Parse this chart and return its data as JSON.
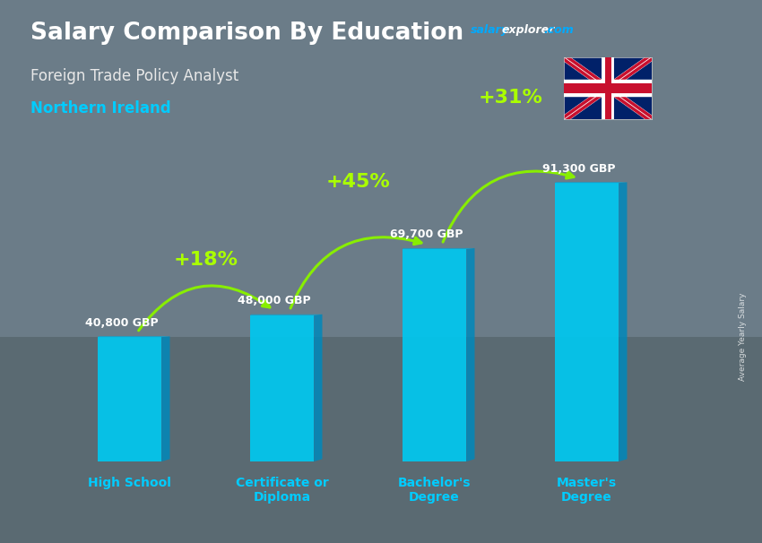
{
  "title": "Salary Comparison By Education",
  "subtitle": "Foreign Trade Policy Analyst",
  "location": "Northern Ireland",
  "categories": [
    "High School",
    "Certificate or\nDiploma",
    "Bachelor's\nDegree",
    "Master's\nDegree"
  ],
  "values": [
    40800,
    48000,
    69700,
    91300
  ],
  "labels": [
    "40,800 GBP",
    "48,000 GBP",
    "69,700 GBP",
    "91,300 GBP"
  ],
  "pct_changes": [
    "+18%",
    "+45%",
    "+31%"
  ],
  "bar_color_face": "#00c8f0",
  "bar_color_side": "#0088bb",
  "bar_color_top": "#00aadd",
  "bg_color": "#6b7c88",
  "title_color": "#ffffff",
  "subtitle_color": "#e8e8e8",
  "location_color": "#00ccff",
  "salary_label_color": "#ffffff",
  "pct_color": "#aaff00",
  "arrow_color": "#88ee00",
  "ylabel": "Average Yearly Salary",
  "ylim": [
    0,
    105000
  ],
  "bar_width": 0.42
}
